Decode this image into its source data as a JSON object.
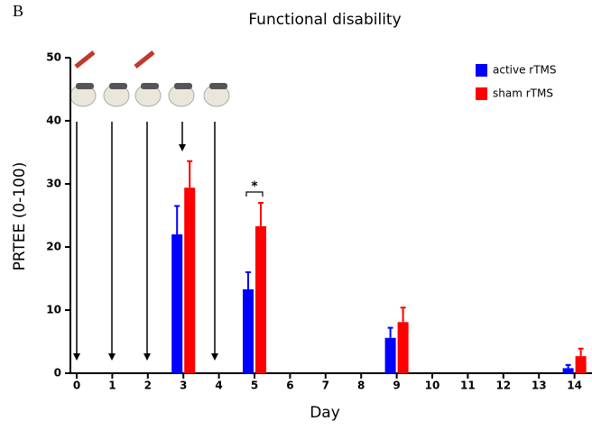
{
  "chart_data": {
    "type": "bar",
    "panel_label": "B",
    "title": "Functional disability",
    "x_label": "Day",
    "y_label": "PRTEE (0-100)",
    "categories": [
      "0",
      "1",
      "2",
      "3",
      "4",
      "5",
      "6",
      "7",
      "8",
      "9",
      "10",
      "11",
      "12",
      "13",
      "14"
    ],
    "series": [
      {
        "name": "active rTMS",
        "color": "#0000ff",
        "values": [
          null,
          null,
          null,
          22,
          null,
          13.3,
          null,
          null,
          null,
          5.6,
          null,
          null,
          null,
          null,
          0.8
        ],
        "errors": [
          null,
          null,
          null,
          4.5,
          null,
          2.7,
          null,
          null,
          null,
          1.6,
          null,
          null,
          null,
          null,
          0.5
        ]
      },
      {
        "name": "sham rTMS",
        "color": "#ff0000",
        "values": [
          null,
          null,
          null,
          29.4,
          null,
          23.3,
          null,
          null,
          null,
          8.1,
          null,
          null,
          null,
          null,
          2.7
        ],
        "errors": [
          null,
          null,
          null,
          4.2,
          null,
          3.7,
          null,
          null,
          null,
          2.3,
          null,
          null,
          null,
          null,
          1.2
        ]
      }
    ],
    "significance": {
      "category_index": 5,
      "label": "*"
    },
    "ylim": [
      0,
      50
    ],
    "yticks": [
      0,
      10,
      20,
      30,
      40,
      50
    ],
    "legend": "top-right"
  }
}
